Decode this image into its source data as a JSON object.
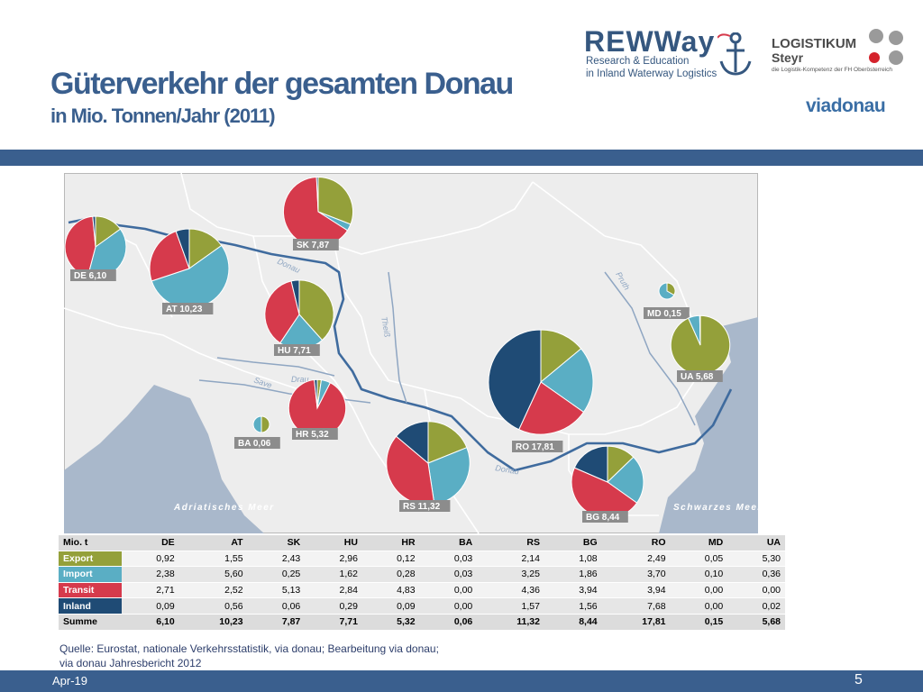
{
  "header": {
    "title": "Güterverkehr der gesamten Donau",
    "subtitle": "in Mio. Tonnen/Jahr  (2011)"
  },
  "logos": {
    "rewway": {
      "word": "REWWay",
      "line1": "Research & Education",
      "line2": "in Inland Waterway Logistics"
    },
    "logistikum": {
      "word": "LOGISTIKUM",
      "steyr": "Steyr",
      "tagline": "die Logistik-Kompetenz der FH Oberösterreich"
    },
    "viadonau": "viadonau"
  },
  "map": {
    "rivers": [
      "Donau",
      "Donau",
      "Theiß",
      "Drau",
      "Save",
      "Pruth"
    ],
    "seas": [
      "Adriatisches Meer",
      "Schwarzes Meer"
    ]
  },
  "colors": {
    "export": "#94a03a",
    "import": "#5aaec4",
    "transit": "#d63a4c",
    "inland": "#1f4b75",
    "water": "#aab9cc",
    "land": "#ededed",
    "header_blue": "#3a5f8e"
  },
  "chart_data": {
    "type": "pie",
    "unit": "Mio. t",
    "categories": [
      "Export",
      "Import",
      "Transit",
      "Inland"
    ],
    "countries": [
      {
        "code": "DE",
        "label": "DE  6,10",
        "values": [
          0.92,
          2.38,
          2.71,
          0.09
        ],
        "total": 6.1
      },
      {
        "code": "AT",
        "label": "AT  10,23",
        "values": [
          1.55,
          5.6,
          2.52,
          0.56
        ],
        "total": 10.23
      },
      {
        "code": "SK",
        "label": "SK  7,87",
        "values": [
          2.43,
          0.25,
          5.13,
          0.06
        ],
        "total": 7.87
      },
      {
        "code": "HU",
        "label": "HU  7,71",
        "values": [
          2.96,
          1.62,
          2.84,
          0.29
        ],
        "total": 7.71
      },
      {
        "code": "HR",
        "label": "HR  5,32",
        "values": [
          0.12,
          0.28,
          4.83,
          0.09
        ],
        "total": 5.32
      },
      {
        "code": "BA",
        "label": "BA  0,06",
        "values": [
          0.03,
          0.03,
          0.0,
          0.0
        ],
        "total": 0.06
      },
      {
        "code": "RS",
        "label": "RS  11,32",
        "values": [
          2.14,
          3.25,
          4.36,
          1.57
        ],
        "total": 11.32
      },
      {
        "code": "BG",
        "label": "BG  8,44",
        "values": [
          1.08,
          1.86,
          3.94,
          1.56
        ],
        "total": 8.44
      },
      {
        "code": "RO",
        "label": "RO  17,81",
        "values": [
          2.49,
          3.7,
          3.94,
          7.68
        ],
        "total": 17.81
      },
      {
        "code": "MD",
        "label": "MD  0,15",
        "values": [
          0.05,
          0.1,
          0.0,
          0.0
        ],
        "total": 0.15
      },
      {
        "code": "UA",
        "label": "UA  5,68",
        "values": [
          5.3,
          0.36,
          0.0,
          0.02
        ],
        "total": 5.68
      }
    ]
  },
  "table": {
    "corner": "Mio. t",
    "columns": [
      "DE",
      "AT",
      "SK",
      "HU",
      "HR",
      "BA",
      "RS",
      "BG",
      "RO",
      "MD",
      "UA"
    ],
    "rows": [
      {
        "label": "Export",
        "cells": [
          "0,92",
          "1,55",
          "2,43",
          "2,96",
          "0,12",
          "0,03",
          "2,14",
          "1,08",
          "2,49",
          "0,05",
          "5,30"
        ]
      },
      {
        "label": "Import",
        "cells": [
          "2,38",
          "5,60",
          "0,25",
          "1,62",
          "0,28",
          "0,03",
          "3,25",
          "1,86",
          "3,70",
          "0,10",
          "0,36"
        ]
      },
      {
        "label": "Transit",
        "cells": [
          "2,71",
          "2,52",
          "5,13",
          "2,84",
          "4,83",
          "0,00",
          "4,36",
          "3,94",
          "3,94",
          "0,00",
          "0,00"
        ]
      },
      {
        "label": "Inland",
        "cells": [
          "0,09",
          "0,56",
          "0,06",
          "0,29",
          "0,09",
          "0,00",
          "1,57",
          "1,56",
          "7,68",
          "0,00",
          "0,02"
        ]
      },
      {
        "label": "Summe",
        "cells": [
          "6,10",
          "10,23",
          "7,87",
          "7,71",
          "5,32",
          "0,06",
          "11,32",
          "8,44",
          "17,81",
          "0,15",
          "5,68"
        ]
      }
    ]
  },
  "footer": {
    "source_line1": "Quelle: Eurostat, nationale Verkehrsstatistik, via donau; Bearbeitung via donau;",
    "source_line2": "via donau Jahresbericht 2012",
    "date": "Apr-19",
    "page": "5"
  }
}
